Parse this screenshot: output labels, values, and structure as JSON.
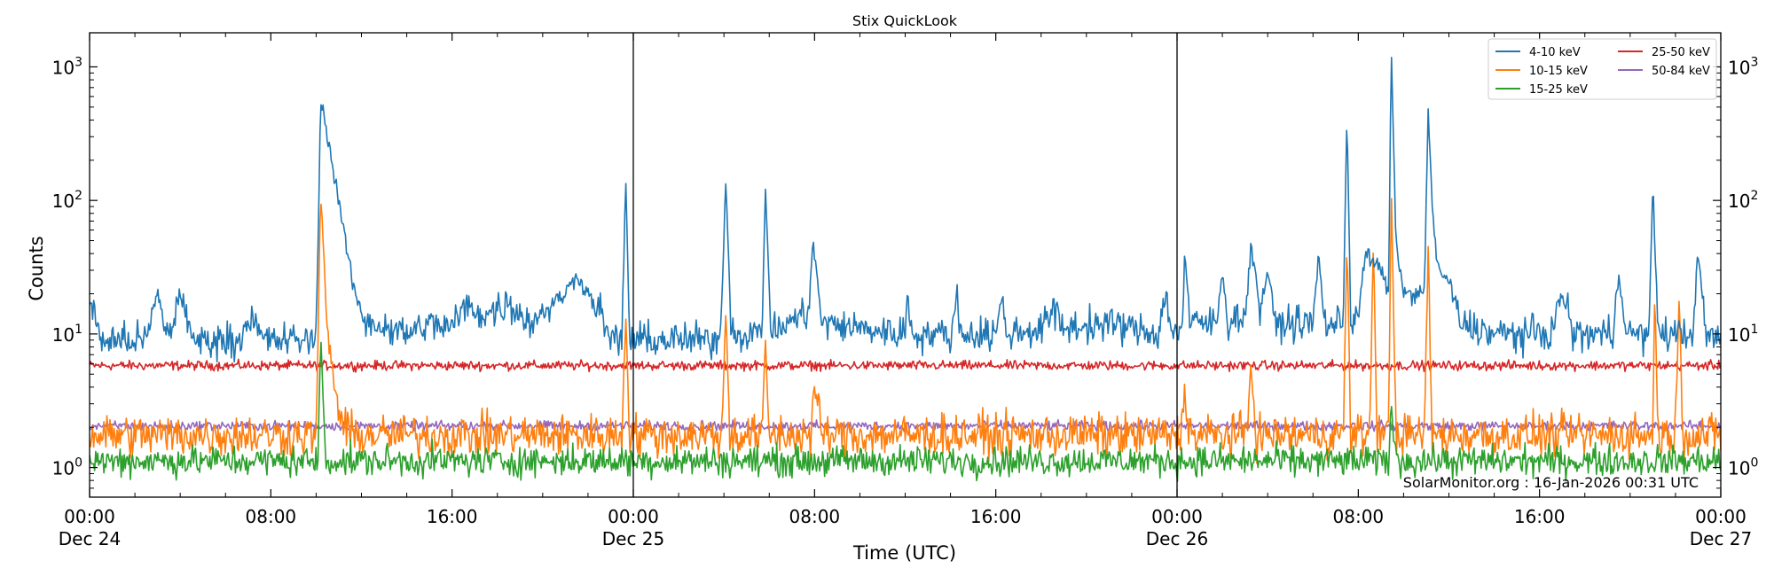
{
  "chart_data": {
    "type": "line",
    "title": "Stix QuickLook",
    "xlabel": "Time (UTC)",
    "ylabel": "Counts",
    "yscale": "log",
    "ylim": [
      0.6,
      1800
    ],
    "xlim": [
      "2025-12-24 00:00",
      "2025-12-27 00:00"
    ],
    "x_ticks": [
      {
        "at": "2025-12-24 00:00",
        "line1": "00:00",
        "line2": "Dec 24"
      },
      {
        "at": "2025-12-24 08:00",
        "line1": "08:00",
        "line2": ""
      },
      {
        "at": "2025-12-24 16:00",
        "line1": "16:00",
        "line2": ""
      },
      {
        "at": "2025-12-25 00:00",
        "line1": "00:00",
        "line2": "Dec 25"
      },
      {
        "at": "2025-12-25 08:00",
        "line1": "08:00",
        "line2": ""
      },
      {
        "at": "2025-12-25 16:00",
        "line1": "16:00",
        "line2": ""
      },
      {
        "at": "2025-12-26 00:00",
        "line1": "00:00",
        "line2": "Dec 26"
      },
      {
        "at": "2025-12-26 08:00",
        "line1": "08:00",
        "line2": ""
      },
      {
        "at": "2025-12-26 16:00",
        "line1": "16:00",
        "line2": ""
      },
      {
        "at": "2025-12-27 00:00",
        "line1": "00:00",
        "line2": "Dec 27"
      }
    ],
    "y_ticks": [
      {
        "value": 1,
        "base": "10",
        "exp": "0"
      },
      {
        "value": 10,
        "base": "10",
        "exp": "1"
      },
      {
        "value": 100,
        "base": "10",
        "exp": "2"
      },
      {
        "value": 1000,
        "base": "10",
        "exp": "3"
      }
    ],
    "vlines": [
      "2025-12-25 00:00",
      "2025-12-26 00:00"
    ],
    "legend_position": "top-right",
    "legend_columns": 2,
    "credit": "SolarMonitor.org : 16-Jan-2026 00:31 UTC",
    "series": [
      {
        "name": "4-10 keV",
        "color": "#1f77b4",
        "baseline": 8.5,
        "noise": 0.09,
        "points": [
          [
            "2025-12-24 00:00",
            18
          ],
          [
            "2025-12-24 00:30",
            9
          ],
          [
            "2025-12-24 02:30",
            9
          ],
          [
            "2025-12-24 03:00",
            20
          ],
          [
            "2025-12-24 03:30",
            9
          ],
          [
            "2025-12-24 04:00",
            21
          ],
          [
            "2025-12-24 04:30",
            9
          ],
          [
            "2025-12-24 06:40",
            9
          ],
          [
            "2025-12-24 07:00",
            14
          ],
          [
            "2025-12-24 07:40",
            9
          ],
          [
            "2025-12-24 10:00",
            9
          ],
          [
            "2025-12-24 10:12",
            600
          ],
          [
            "2025-12-24 10:30",
            300
          ],
          [
            "2025-12-24 11:00",
            100
          ],
          [
            "2025-12-24 11:30",
            30
          ],
          [
            "2025-12-24 12:00",
            13
          ],
          [
            "2025-12-24 14:00",
            10
          ],
          [
            "2025-12-24 15:00",
            12
          ],
          [
            "2025-12-24 16:00",
            11
          ],
          [
            "2025-12-24 16:30",
            16
          ],
          [
            "2025-12-24 17:30",
            14
          ],
          [
            "2025-12-24 18:30",
            17
          ],
          [
            "2025-12-24 19:30",
            12
          ],
          [
            "2025-12-24 20:00",
            15
          ],
          [
            "2025-12-24 21:00",
            20
          ],
          [
            "2025-12-24 21:30",
            28
          ],
          [
            "2025-12-24 22:00",
            20
          ],
          [
            "2025-12-24 22:30",
            15
          ],
          [
            "2025-12-24 23:00",
            9
          ],
          [
            "2025-12-24 23:30",
            9
          ],
          [
            "2025-12-24 23:40",
            150
          ],
          [
            "2025-12-24 23:50",
            9
          ],
          [
            "2025-12-25 03:50",
            9
          ],
          [
            "2025-12-25 04:05",
            140
          ],
          [
            "2025-12-25 04:20",
            10
          ],
          [
            "2025-12-25 05:40",
            10
          ],
          [
            "2025-12-25 05:50",
            120
          ],
          [
            "2025-12-25 06:05",
            10
          ],
          [
            "2025-12-25 07:45",
            15
          ],
          [
            "2025-12-25 07:55",
            50
          ],
          [
            "2025-12-25 08:20",
            12
          ],
          [
            "2025-12-25 12:00",
            10
          ],
          [
            "2025-12-25 12:05",
            20
          ],
          [
            "2025-12-25 12:20",
            10
          ],
          [
            "2025-12-25 14:05",
            10
          ],
          [
            "2025-12-25 14:15",
            19
          ],
          [
            "2025-12-25 14:30",
            10
          ],
          [
            "2025-12-25 16:00",
            10
          ],
          [
            "2025-12-25 16:15",
            18
          ],
          [
            "2025-12-25 16:30",
            10
          ],
          [
            "2025-12-25 18:00",
            11
          ],
          [
            "2025-12-25 18:30",
            15
          ],
          [
            "2025-12-25 19:00",
            11
          ],
          [
            "2025-12-25 21:00",
            12
          ],
          [
            "2025-12-25 23:10",
            10
          ],
          [
            "2025-12-25 23:30",
            20
          ],
          [
            "2025-12-25 23:45",
            10
          ],
          [
            "2025-12-26 00:15",
            12
          ],
          [
            "2025-12-26 00:20",
            40
          ],
          [
            "2025-12-26 00:35",
            12
          ],
          [
            "2025-12-26 01:45",
            12
          ],
          [
            "2025-12-26 02:00",
            30
          ],
          [
            "2025-12-26 02:15",
            12
          ],
          [
            "2025-12-26 03:05",
            15
          ],
          [
            "2025-12-26 03:15",
            50
          ],
          [
            "2025-12-26 03:40",
            15
          ],
          [
            "2025-12-26 04:00",
            30
          ],
          [
            "2025-12-26 04:20",
            12
          ],
          [
            "2025-12-26 06:00",
            12
          ],
          [
            "2025-12-26 06:15",
            40
          ],
          [
            "2025-12-26 06:30",
            12
          ],
          [
            "2025-12-26 07:20",
            12
          ],
          [
            "2025-12-26 07:30",
            500
          ],
          [
            "2025-12-26 07:40",
            12
          ],
          [
            "2025-12-26 08:00",
            15
          ],
          [
            "2025-12-26 08:20",
            40
          ],
          [
            "2025-12-26 09:00",
            30
          ],
          [
            "2025-12-26 09:20",
            20
          ],
          [
            "2025-12-26 09:27",
            1250
          ],
          [
            "2025-12-26 09:40",
            50
          ],
          [
            "2025-12-26 10:00",
            20
          ],
          [
            "2025-12-26 10:55",
            20
          ],
          [
            "2025-12-26 11:05",
            500
          ],
          [
            "2025-12-26 11:15",
            100
          ],
          [
            "2025-12-26 11:30",
            30
          ],
          [
            "2025-12-26 12:00",
            25
          ],
          [
            "2025-12-26 12:30",
            12
          ],
          [
            "2025-12-26 14:00",
            10
          ],
          [
            "2025-12-26 16:30",
            10
          ],
          [
            "2025-12-26 17:00",
            20
          ],
          [
            "2025-12-26 17:30",
            10
          ],
          [
            "2025-12-26 19:15",
            10
          ],
          [
            "2025-12-26 19:30",
            30
          ],
          [
            "2025-12-26 19:50",
            10
          ],
          [
            "2025-12-26 20:50",
            10
          ],
          [
            "2025-12-26 21:00",
            125
          ],
          [
            "2025-12-26 21:15",
            10
          ],
          [
            "2025-12-26 22:45",
            10
          ],
          [
            "2025-12-26 23:00",
            40
          ],
          [
            "2025-12-26 23:20",
            10
          ],
          [
            "2025-12-27 00:00",
            9
          ]
        ]
      },
      {
        "name": "10-15 keV",
        "color": "#ff7f0e",
        "baseline": 1.75,
        "noise": 0.11,
        "points": [
          [
            "2025-12-24 00:00",
            1.75
          ],
          [
            "2025-12-24 10:00",
            1.75
          ],
          [
            "2025-12-24 10:12",
            110
          ],
          [
            "2025-12-24 10:30",
            10
          ],
          [
            "2025-12-24 11:00",
            2.5
          ],
          [
            "2025-12-24 11:30",
            1.75
          ],
          [
            "2025-12-24 23:30",
            1.75
          ],
          [
            "2025-12-24 23:40",
            15
          ],
          [
            "2025-12-24 23:50",
            1.75
          ],
          [
            "2025-12-25 03:55",
            1.75
          ],
          [
            "2025-12-25 04:05",
            16
          ],
          [
            "2025-12-25 04:15",
            1.75
          ],
          [
            "2025-12-25 05:40",
            1.75
          ],
          [
            "2025-12-25 05:50",
            8
          ],
          [
            "2025-12-25 06:00",
            1.75
          ],
          [
            "2025-12-25 07:50",
            1.75
          ],
          [
            "2025-12-25 08:00",
            4
          ],
          [
            "2025-12-25 08:20",
            1.75
          ],
          [
            "2025-12-26 00:10",
            1.75
          ],
          [
            "2025-12-26 00:20",
            4
          ],
          [
            "2025-12-26 00:35",
            1.75
          ],
          [
            "2025-12-26 03:05",
            1.75
          ],
          [
            "2025-12-26 03:15",
            6
          ],
          [
            "2025-12-26 03:30",
            1.75
          ],
          [
            "2025-12-26 07:20",
            1.75
          ],
          [
            "2025-12-26 07:30",
            50
          ],
          [
            "2025-12-26 07:40",
            1.75
          ],
          [
            "2025-12-26 08:30",
            1.75
          ],
          [
            "2025-12-26 08:40",
            50
          ],
          [
            "2025-12-26 08:50",
            1.75
          ],
          [
            "2025-12-26 09:20",
            1.75
          ],
          [
            "2025-12-26 09:27",
            130
          ],
          [
            "2025-12-26 09:40",
            1.75
          ],
          [
            "2025-12-26 10:55",
            1.75
          ],
          [
            "2025-12-26 11:05",
            45
          ],
          [
            "2025-12-26 11:15",
            1.75
          ],
          [
            "2025-12-26 21:00",
            1.75
          ],
          [
            "2025-12-26 21:05",
            20
          ],
          [
            "2025-12-26 21:15",
            1.75
          ],
          [
            "2025-12-26 22:00",
            1.75
          ],
          [
            "2025-12-26 22:10",
            20
          ],
          [
            "2025-12-26 22:20",
            1.75
          ],
          [
            "2025-12-27 00:00",
            1.75
          ]
        ]
      },
      {
        "name": "15-25 keV",
        "color": "#2ca02c",
        "baseline": 1.12,
        "noise": 0.08,
        "points": [
          [
            "2025-12-24 00:00",
            1.12
          ],
          [
            "2025-12-24 10:05",
            1.12
          ],
          [
            "2025-12-24 10:12",
            10
          ],
          [
            "2025-12-24 10:25",
            1.12
          ],
          [
            "2025-12-26 09:20",
            1.12
          ],
          [
            "2025-12-26 09:27",
            3
          ],
          [
            "2025-12-26 09:40",
            1.12
          ],
          [
            "2025-12-27 00:00",
            1.12
          ]
        ]
      },
      {
        "name": "25-50 keV",
        "color": "#d62728",
        "baseline": 5.8,
        "noise": 0.025,
        "points": [
          [
            "2025-12-24 00:00",
            5.8
          ],
          [
            "2025-12-27 00:00",
            5.8
          ]
        ]
      },
      {
        "name": "50-84 keV",
        "color": "#9467bd",
        "baseline": 2.05,
        "noise": 0.025,
        "points": [
          [
            "2025-12-24 00:00",
            2.05
          ],
          [
            "2025-12-27 00:00",
            2.05
          ]
        ]
      }
    ]
  }
}
